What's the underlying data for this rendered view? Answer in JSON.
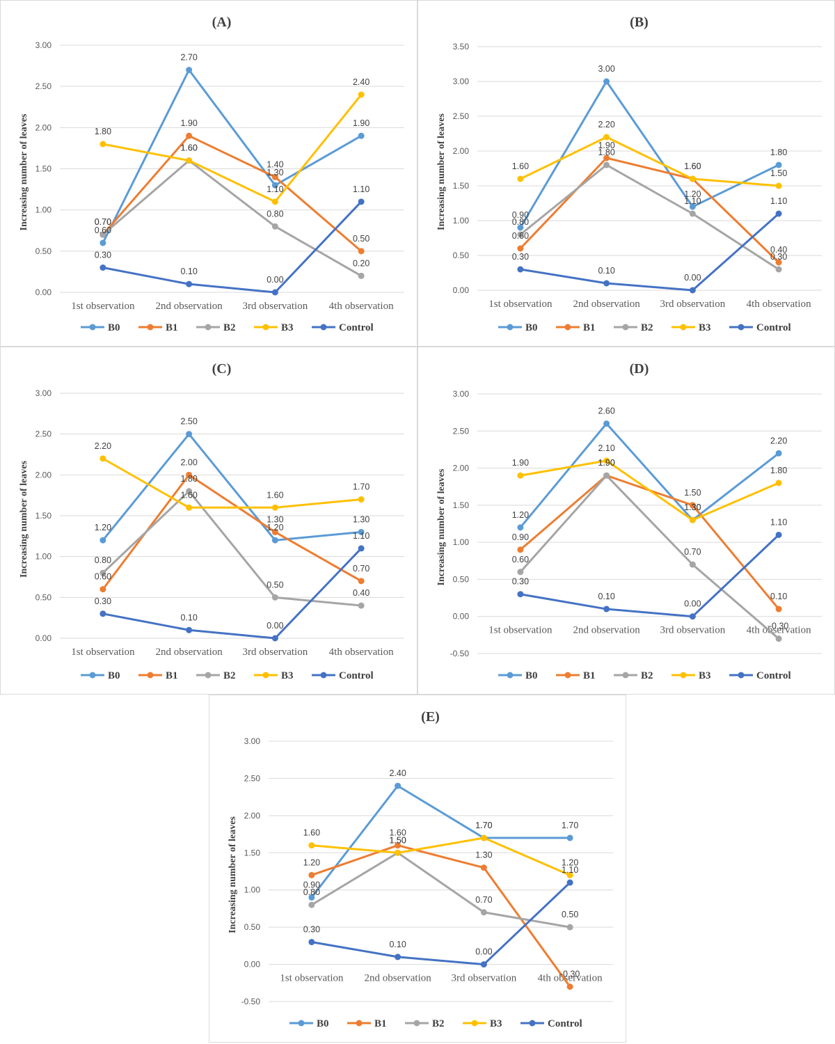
{
  "chart_data": [
    {
      "type": "line",
      "title": "(A)",
      "ylabel": "Increasing number of leaves",
      "xlabel": "",
      "categories": [
        "1st observation",
        "2nd observation",
        "3rd observation",
        "4th observation"
      ],
      "ylim": [
        0,
        3
      ],
      "yticks": [
        "0.00",
        "0.50",
        "1.00",
        "1.50",
        "2.00",
        "2.50",
        "3.00"
      ],
      "grid": true,
      "legend": "bottom",
      "series": [
        {
          "name": "B0",
          "color": "#5B9BD5",
          "values": [
            0.6,
            2.7,
            1.3,
            1.9
          ],
          "labels": [
            "0.60",
            "2.70",
            "1.30",
            "1.90"
          ]
        },
        {
          "name": "B1",
          "color": "#ED7D31",
          "values": [
            0.7,
            1.9,
            1.4,
            0.5
          ],
          "labels": [
            "0.70",
            "1.90",
            "1.40",
            "0.50"
          ]
        },
        {
          "name": "B2",
          "color": "#A5A5A5",
          "values": [
            0.7,
            1.6,
            0.8,
            0.2
          ],
          "labels": [
            "0.70",
            "1.60",
            "0.80",
            "0.20"
          ]
        },
        {
          "name": "B3",
          "color": "#FFC000",
          "values": [
            1.8,
            1.6,
            1.1,
            2.4
          ],
          "labels": [
            "1.80",
            "1.60",
            "1.10",
            "2.40"
          ]
        },
        {
          "name": "Control",
          "color": "#4472C4",
          "values": [
            0.3,
            0.1,
            0.0,
            1.1
          ],
          "labels": [
            "0.30",
            "0.10",
            "0.00",
            "1.10"
          ]
        }
      ]
    },
    {
      "type": "line",
      "title": "(B)",
      "ylabel": "Increasing number of leaves",
      "xlabel": "",
      "categories": [
        "1st observation",
        "2nd observation",
        "3rd observation",
        "4th observation"
      ],
      "ylim": [
        0,
        3.5
      ],
      "yticks": [
        "0.00",
        "0.50",
        "1.00",
        "1.50",
        "2.00",
        "2.50",
        "3.00",
        "3.50"
      ],
      "grid": true,
      "legend": "bottom",
      "series": [
        {
          "name": "B0",
          "color": "#5B9BD5",
          "values": [
            0.9,
            3.0,
            1.2,
            1.8
          ],
          "labels": [
            "0.90",
            "3.00",
            "1.20",
            "1.80"
          ]
        },
        {
          "name": "B1",
          "color": "#ED7D31",
          "values": [
            0.6,
            1.9,
            1.6,
            0.4
          ],
          "labels": [
            "0.60",
            "1.90",
            "1.60",
            "0.40"
          ]
        },
        {
          "name": "B2",
          "color": "#A5A5A5",
          "values": [
            0.8,
            1.8,
            1.1,
            0.3
          ],
          "labels": [
            "0.80",
            "1.80",
            "1.10",
            "0.30"
          ]
        },
        {
          "name": "B3",
          "color": "#FFC000",
          "values": [
            1.6,
            2.2,
            1.6,
            1.5
          ],
          "labels": [
            "1.60",
            "2.20",
            "1.60",
            "1.50"
          ]
        },
        {
          "name": "Control",
          "color": "#4472C4",
          "values": [
            0.3,
            0.1,
            0.0,
            1.1
          ],
          "labels": [
            "0.30",
            "0.10",
            "0.00",
            "1.10"
          ]
        }
      ]
    },
    {
      "type": "line",
      "title": "(C)",
      "ylabel": "Increasing number of leaves",
      "xlabel": "",
      "categories": [
        "1st observation",
        "2nd observation",
        "3rd observation",
        "4th observation"
      ],
      "ylim": [
        0,
        3
      ],
      "yticks": [
        "0.00",
        "0.50",
        "1.00",
        "1.50",
        "2.00",
        "2.50",
        "3.00"
      ],
      "grid": true,
      "legend": "bottom",
      "series": [
        {
          "name": "B0",
          "color": "#5B9BD5",
          "values": [
            1.2,
            2.5,
            1.2,
            1.3
          ],
          "labels": [
            "1.20",
            "2.50",
            "1.20",
            "1.30"
          ]
        },
        {
          "name": "B1",
          "color": "#ED7D31",
          "values": [
            0.6,
            2.0,
            1.3,
            0.7
          ],
          "labels": [
            "0.60",
            "2.00",
            "1.30",
            "0.70"
          ]
        },
        {
          "name": "B2",
          "color": "#A5A5A5",
          "values": [
            0.8,
            1.8,
            0.5,
            0.4
          ],
          "labels": [
            "0.80",
            "1.80",
            "0.50",
            "0.40"
          ]
        },
        {
          "name": "B3",
          "color": "#FFC000",
          "values": [
            2.2,
            1.6,
            1.6,
            1.7
          ],
          "labels": [
            "2.20",
            "1.60",
            "1.60",
            "1.70"
          ]
        },
        {
          "name": "Control",
          "color": "#4472C4",
          "values": [
            0.3,
            0.1,
            0.0,
            1.1
          ],
          "labels": [
            "0.30",
            "0.10",
            "0.00",
            "1.10"
          ]
        }
      ]
    },
    {
      "type": "line",
      "title": "(D)",
      "ylabel": "Increasing number of leaves",
      "xlabel": "",
      "categories": [
        "1st observation",
        "2nd observation",
        "3rd observation",
        "4th observation"
      ],
      "ylim": [
        -0.5,
        3
      ],
      "yticks": [
        "-0.50",
        "0.00",
        "0.50",
        "1.00",
        "1.50",
        "2.00",
        "2.50",
        "3.00"
      ],
      "grid": true,
      "legend": "bottom",
      "series": [
        {
          "name": "B0",
          "color": "#5B9BD5",
          "values": [
            1.2,
            2.6,
            1.3,
            2.2
          ],
          "labels": [
            "1.20",
            "2.60",
            "1.30",
            "2.20"
          ]
        },
        {
          "name": "B1",
          "color": "#ED7D31",
          "values": [
            0.9,
            1.9,
            1.5,
            0.1
          ],
          "labels": [
            "0.90",
            "1.90",
            "1.50",
            "0.10"
          ]
        },
        {
          "name": "B2",
          "color": "#A5A5A5",
          "values": [
            0.6,
            1.9,
            0.7,
            -0.3
          ],
          "labels": [
            "0.60",
            "1.90",
            "0.70",
            "-0.30"
          ]
        },
        {
          "name": "B3",
          "color": "#FFC000",
          "values": [
            1.9,
            2.1,
            1.3,
            1.8
          ],
          "labels": [
            "1.90",
            "2.10",
            "1.30",
            "1.80"
          ]
        },
        {
          "name": "Control",
          "color": "#4472C4",
          "values": [
            0.3,
            0.1,
            0.0,
            1.1
          ],
          "labels": [
            "0.30",
            "0.10",
            "0.00",
            "1.10"
          ]
        }
      ]
    },
    {
      "type": "line",
      "title": "(E)",
      "ylabel": "Increasing number of leaves",
      "xlabel": "",
      "categories": [
        "1st observation",
        "2nd observation",
        "3rd observation",
        "4th observation"
      ],
      "ylim": [
        -0.5,
        3
      ],
      "yticks": [
        "-0.50",
        "0.00",
        "0.50",
        "1.00",
        "1.50",
        "2.00",
        "2.50",
        "3.00"
      ],
      "grid": true,
      "legend": "bottom",
      "series": [
        {
          "name": "B0",
          "color": "#5B9BD5",
          "values": [
            0.9,
            2.4,
            1.7,
            1.7
          ],
          "labels": [
            "0.90",
            "2.40",
            "1.70",
            "1.70"
          ]
        },
        {
          "name": "B1",
          "color": "#ED7D31",
          "values": [
            1.2,
            1.6,
            1.3,
            -0.3
          ],
          "labels": [
            "1.20",
            "1.60",
            "1.30",
            "-0.30"
          ]
        },
        {
          "name": "B2",
          "color": "#A5A5A5",
          "values": [
            0.8,
            1.5,
            0.7,
            0.5
          ],
          "labels": [
            "0.80",
            "1.50",
            "0.70",
            "0.50"
          ]
        },
        {
          "name": "B3",
          "color": "#FFC000",
          "values": [
            1.6,
            1.5,
            1.7,
            1.2
          ],
          "labels": [
            "1.60",
            "1.50",
            "1.70",
            "1.20"
          ]
        },
        {
          "name": "Control",
          "color": "#4472C4",
          "values": [
            0.3,
            0.1,
            0.0,
            1.1
          ],
          "labels": [
            "0.30",
            "0.10",
            "0.00",
            "1.10"
          ]
        }
      ]
    }
  ]
}
